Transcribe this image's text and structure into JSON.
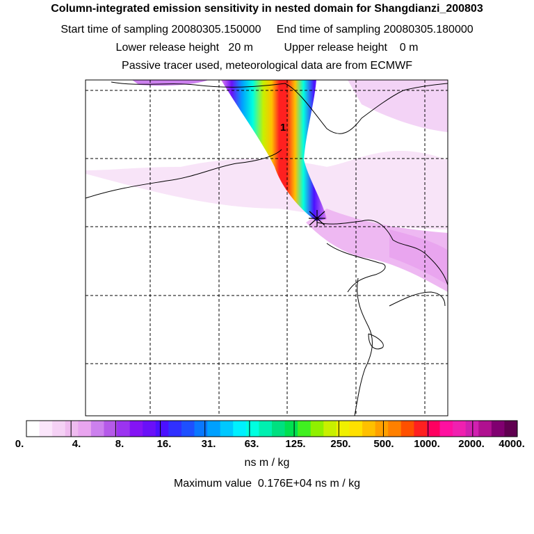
{
  "header": {
    "title": "Column-integrated emission sensitivity in nested domain for Shangdianzi_200803",
    "sampling": "Start time of sampling 20080305.150000     End time of sampling 20080305.180000",
    "release": "Lower release height   20 m          Upper release height    0 m",
    "info": "Passive tracer used, meteorological data are from ECMWF"
  },
  "map": {
    "contour_label": "1",
    "receptor_marker": "Shangdianzi"
  },
  "colorbar": {
    "colors": [
      "#ffffff",
      "#fbe6fb",
      "#f5d1f5",
      "#efbbef",
      "#e9a5ef",
      "#cc80ee",
      "#b55ae9",
      "#9b34f0",
      "#8414f5",
      "#6a10f8",
      "#4b10ff",
      "#3030ff",
      "#1e50ff",
      "#0a78ff",
      "#00a0ff",
      "#00c8ff",
      "#00f0ff",
      "#00ffe0",
      "#00f0b0",
      "#00e080",
      "#00e050",
      "#40f020",
      "#90f000",
      "#c8f000",
      "#f0f000",
      "#ffe000",
      "#ffc000",
      "#ffa000",
      "#ff8000",
      "#ff5000",
      "#ff2020",
      "#ff0060",
      "#ff10a0",
      "#f020b0",
      "#d020b0",
      "#b01090",
      "#800070",
      "#600050"
    ],
    "tick_labels": [
      "0.",
      "4.",
      "8.",
      "16.",
      "31.",
      "63.",
      "125.",
      "250.",
      "500.",
      "1000.",
      "2000.",
      "4000."
    ],
    "unit": "ns m / kg",
    "max_value": "Maximum value  0.176E+04 ns m / kg"
  }
}
